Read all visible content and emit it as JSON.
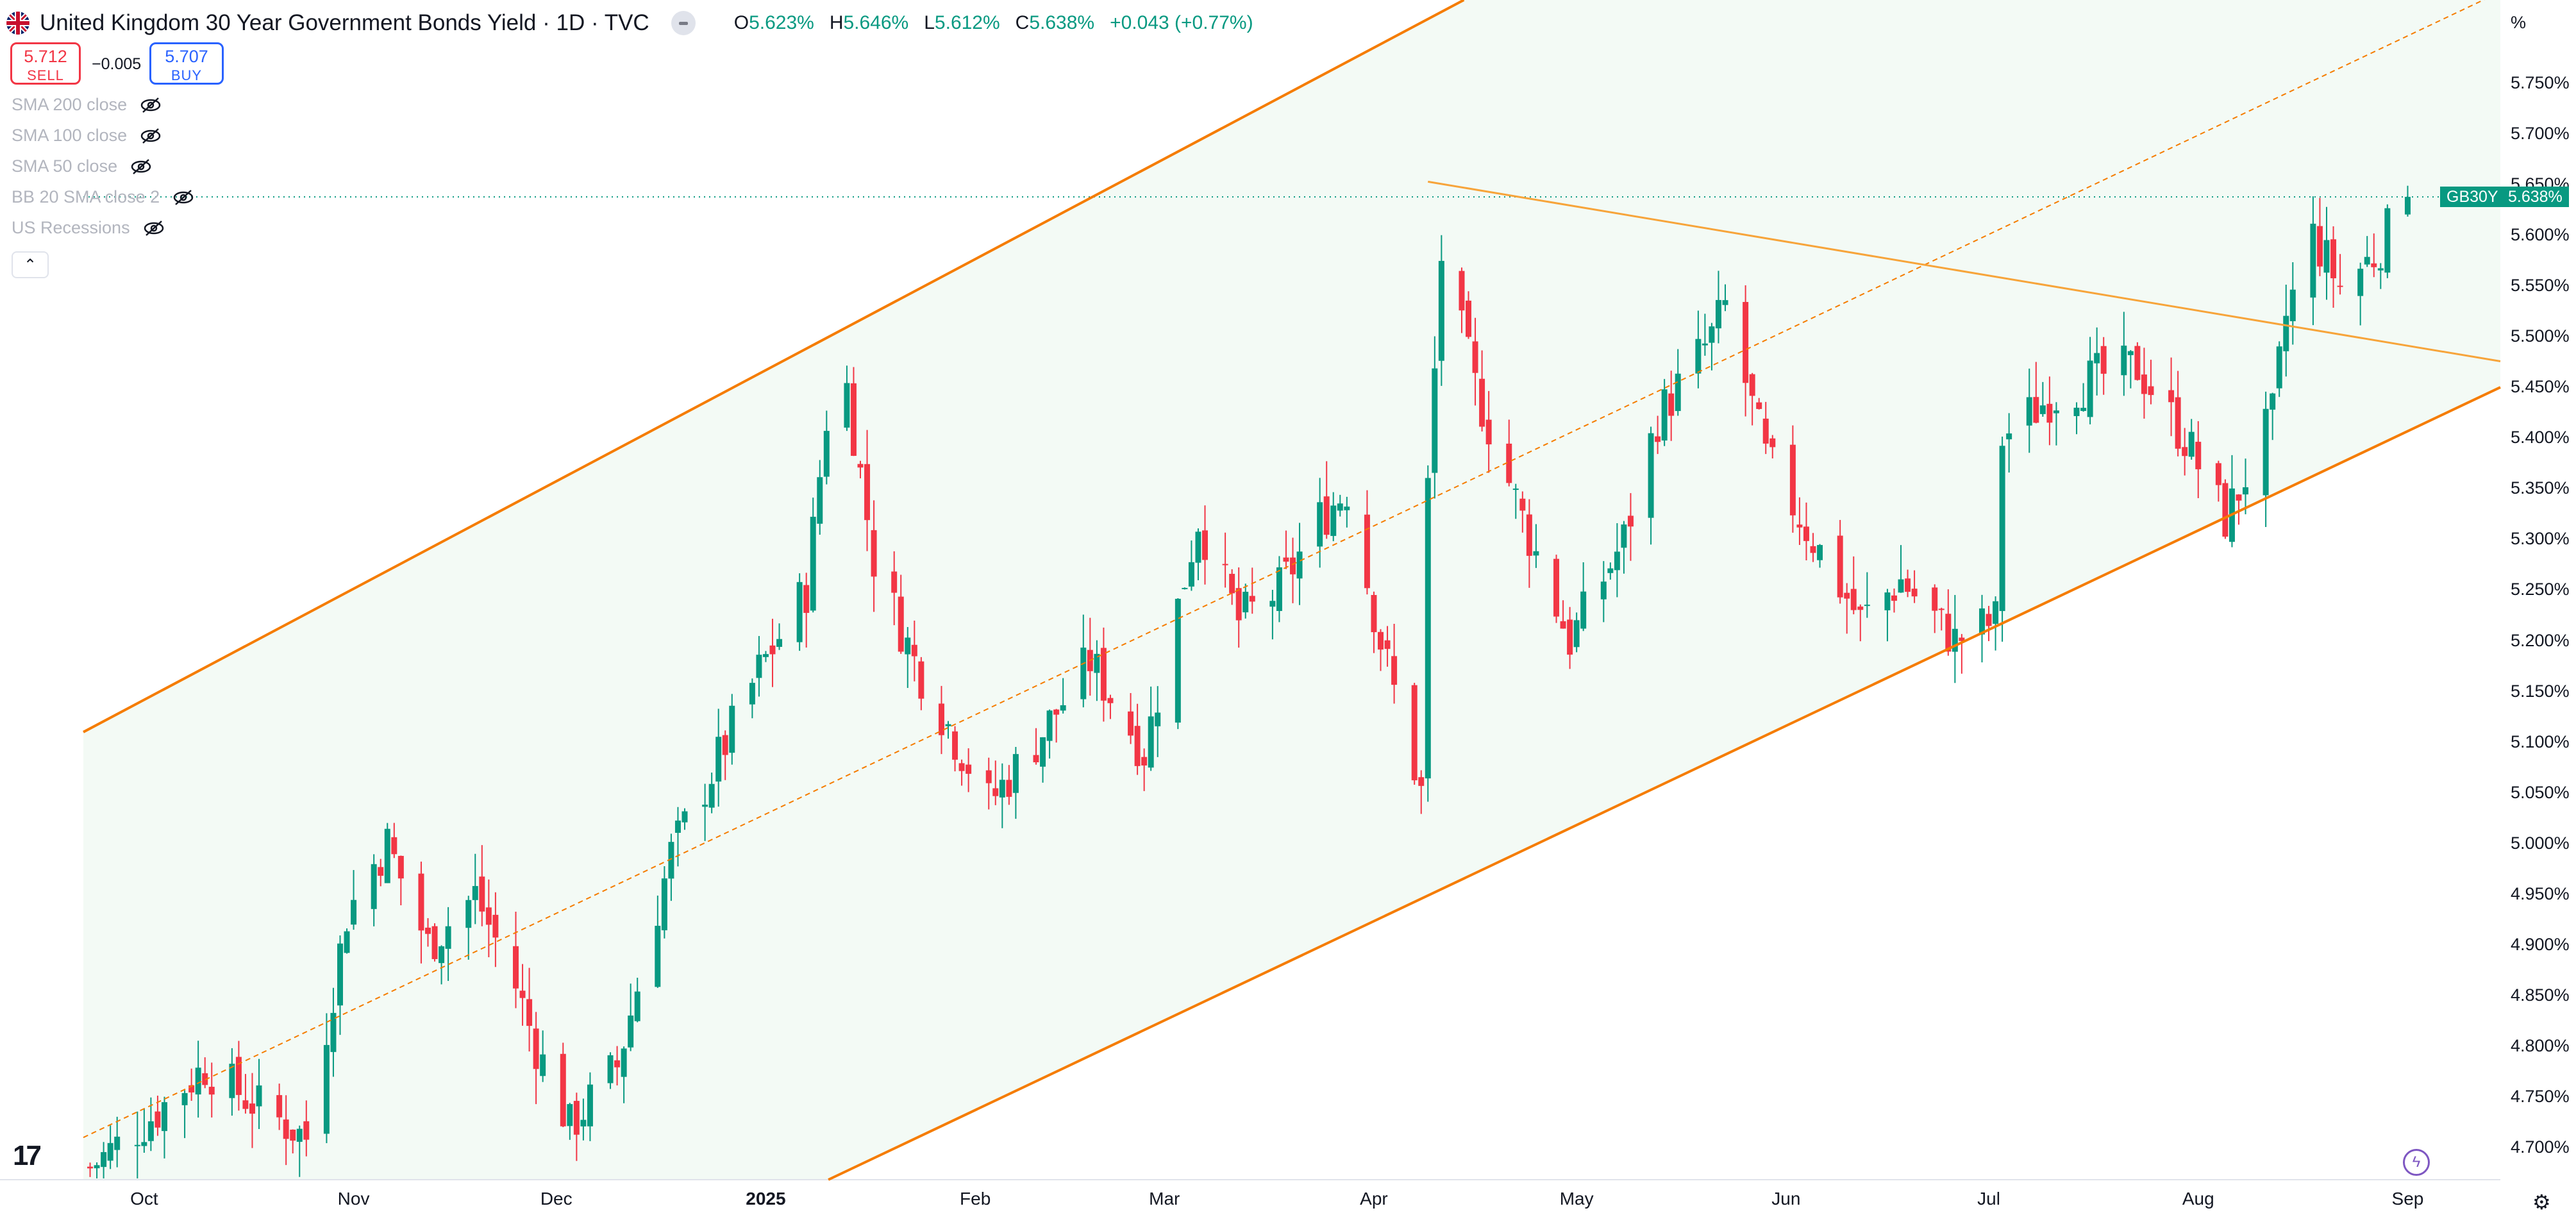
{
  "header": {
    "title": "United Kingdom 30 Year Government Bonds Yield · 1D · TVC",
    "ohlc": [
      {
        "k": "O",
        "v": "5.623%"
      },
      {
        "k": "H",
        "v": "5.646%"
      },
      {
        "k": "L",
        "v": "5.612%"
      },
      {
        "k": "C",
        "v": "5.638%"
      },
      {
        "k": "",
        "v": "+0.043 (+0.77%)"
      }
    ]
  },
  "trade": {
    "sell_price": "5.712",
    "sell_label": "SELL",
    "spread": "−0.005",
    "buy_price": "5.707",
    "buy_label": "BUY"
  },
  "indicators": [
    "SMA 200 close",
    "SMA 100 close",
    "SMA 50 close",
    "BB 20 SMA close 2",
    "US Recessions"
  ],
  "price_axis": {
    "unit": "%",
    "ticks": [
      "5.750%",
      "5.700%",
      "5.650%",
      "5.600%",
      "5.550%",
      "5.500%",
      "5.450%",
      "5.400%",
      "5.350%",
      "5.300%",
      "5.250%",
      "5.200%",
      "5.150%",
      "5.100%",
      "5.050%",
      "5.000%",
      "4.950%",
      "4.900%",
      "4.850%",
      "4.800%",
      "4.750%",
      "4.700%"
    ],
    "current_symbol": "GB30Y",
    "current_price": "5.638%"
  },
  "time_axis": [
    "Oct",
    "Nov",
    "Dec",
    "2025",
    "Feb",
    "Mar",
    "Apr",
    "May",
    "Jun",
    "Jul",
    "Aug",
    "Sep"
  ],
  "colors": {
    "up": "#089981",
    "down": "#f23645",
    "channel": "#f57c00",
    "trendline": "#f7a43a",
    "channel_fill": "#f3faf5"
  },
  "chart_data": {
    "type": "candlestick",
    "symbol": "GB30Y",
    "y_unit": "%",
    "ylim": [
      4.68,
      5.79
    ],
    "x_labels": [
      "Oct",
      "Nov",
      "Dec",
      "2025",
      "Feb",
      "Mar",
      "Apr",
      "May",
      "Jun",
      "Jul",
      "Aug",
      "Sep"
    ],
    "last_close": 5.638,
    "anchor_closes": [
      {
        "date": "2024-09-23",
        "close": 4.68
      },
      {
        "date": "2024-10-02",
        "close": 4.73
      },
      {
        "date": "2024-10-10",
        "close": 4.78
      },
      {
        "date": "2024-10-18",
        "close": 4.74
      },
      {
        "date": "2024-10-25",
        "close": 4.71
      },
      {
        "date": "2024-10-31",
        "close": 4.93
      },
      {
        "date": "2024-11-04",
        "close": 4.98
      },
      {
        "date": "2024-11-06",
        "close": 5.0
      },
      {
        "date": "2024-11-12",
        "close": 4.9
      },
      {
        "date": "2024-11-19",
        "close": 4.95
      },
      {
        "date": "2024-11-25",
        "close": 4.86
      },
      {
        "date": "2024-11-28",
        "close": 4.8
      },
      {
        "date": "2024-12-03",
        "close": 4.72
      },
      {
        "date": "2024-12-10",
        "close": 4.78
      },
      {
        "date": "2024-12-18",
        "close": 4.99
      },
      {
        "date": "2024-12-24",
        "close": 5.07
      },
      {
        "date": "2024-12-31",
        "close": 5.17
      },
      {
        "date": "2025-01-07",
        "close": 5.25
      },
      {
        "date": "2025-01-10",
        "close": 5.42
      },
      {
        "date": "2025-01-13",
        "close": 5.45
      },
      {
        "date": "2025-01-17",
        "close": 5.28
      },
      {
        "date": "2025-01-23",
        "close": 5.18
      },
      {
        "date": "2025-02-03",
        "close": 5.04
      },
      {
        "date": "2025-02-10",
        "close": 5.1
      },
      {
        "date": "2025-02-18",
        "close": 5.18
      },
      {
        "date": "2025-02-26",
        "close": 5.09
      },
      {
        "date": "2025-03-06",
        "close": 5.32
      },
      {
        "date": "2025-03-12",
        "close": 5.22
      },
      {
        "date": "2025-03-18",
        "close": 5.25
      },
      {
        "date": "2025-03-24",
        "close": 5.32
      },
      {
        "date": "2025-03-28",
        "close": 5.35
      },
      {
        "date": "2025-04-02",
        "close": 5.2
      },
      {
        "date": "2025-04-08",
        "close": 5.05
      },
      {
        "date": "2025-04-09",
        "close": 5.35
      },
      {
        "date": "2025-04-11",
        "close": 5.58
      },
      {
        "date": "2025-04-16",
        "close": 5.45
      },
      {
        "date": "2025-04-23",
        "close": 5.32
      },
      {
        "date": "2025-04-30",
        "close": 5.2
      },
      {
        "date": "2025-05-08",
        "close": 5.3
      },
      {
        "date": "2025-05-13",
        "close": 5.42
      },
      {
        "date": "2025-05-21",
        "close": 5.5
      },
      {
        "date": "2025-05-23",
        "close": 5.53
      },
      {
        "date": "2025-05-29",
        "close": 5.38
      },
      {
        "date": "2025-06-05",
        "close": 5.3
      },
      {
        "date": "2025-06-12",
        "close": 5.22
      },
      {
        "date": "2025-06-18",
        "close": 5.26
      },
      {
        "date": "2025-06-26",
        "close": 5.2
      },
      {
        "date": "2025-07-02",
        "close": 5.22
      },
      {
        "date": "2025-07-03",
        "close": 5.4
      },
      {
        "date": "2025-07-10",
        "close": 5.44
      },
      {
        "date": "2025-07-17",
        "close": 5.46
      },
      {
        "date": "2025-07-23",
        "close": 5.47
      },
      {
        "date": "2025-07-30",
        "close": 5.4
      },
      {
        "date": "2025-08-05",
        "close": 5.32
      },
      {
        "date": "2025-08-12",
        "close": 5.42
      },
      {
        "date": "2025-08-14",
        "close": 5.52
      },
      {
        "date": "2025-08-18",
        "close": 5.6
      },
      {
        "date": "2025-08-22",
        "close": 5.55
      },
      {
        "date": "2025-08-27",
        "close": 5.58
      },
      {
        "date": "2025-09-01",
        "close": 5.638
      }
    ],
    "trendlines": [
      {
        "kind": "channel-upper",
        "from": [
          "2024-09-22",
          5.11
        ],
        "to": [
          "2025-04-25",
          5.87
        ]
      },
      {
        "kind": "channel-lower",
        "from": [
          "2024-09-22",
          4.32
        ],
        "to": [
          "2025-09-02",
          5.41
        ]
      },
      {
        "kind": "channel-mid",
        "from": [
          "2024-09-22",
          4.71
        ],
        "to": [
          "2025-09-02",
          5.8
        ],
        "style": "dashed"
      },
      {
        "kind": "resistance",
        "from": [
          "2025-04-09",
          5.653
        ],
        "to": [
          "2025-09-02",
          5.49
        ]
      }
    ]
  }
}
